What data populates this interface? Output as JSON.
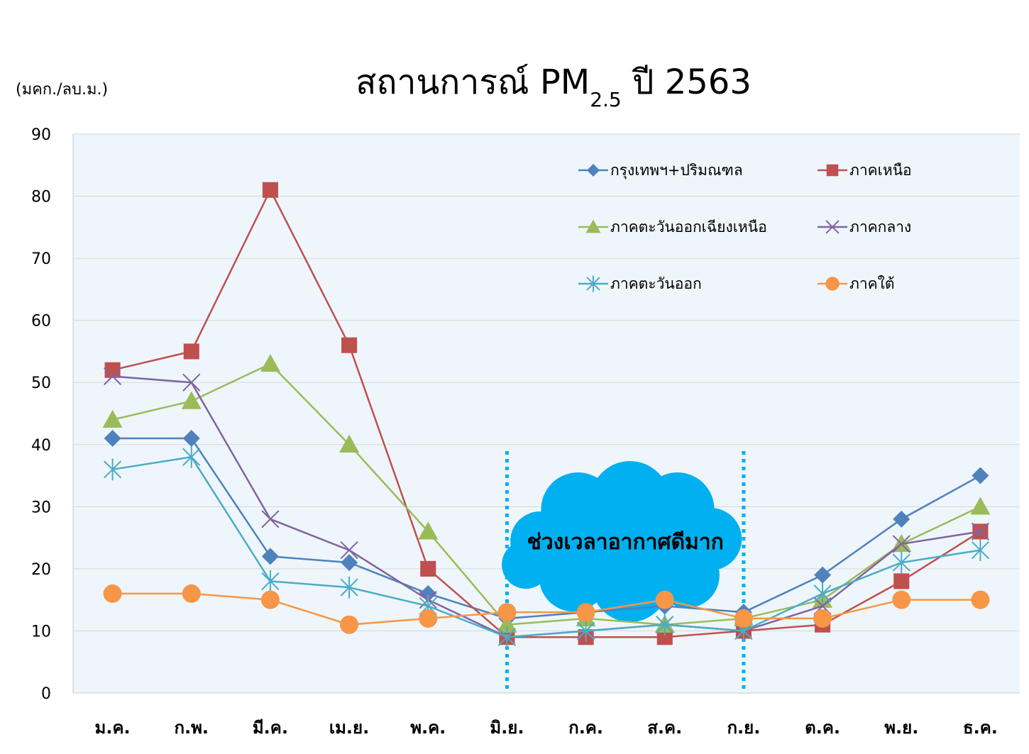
{
  "title": {
    "main": "สถานการณ์ PM",
    "subscript": "2.5",
    "suffix": " ปี 2563"
  },
  "unit_label": "(มคก./ลบ.ม.)",
  "annotation": "ช่วงเวลาอากาศดีมาก",
  "colors": {
    "plot_bg": "#eef6fc",
    "grid": "#d8d8d8",
    "cloud": "#00b0f0",
    "divider": "#00b0f0"
  },
  "chart_data": {
    "type": "line",
    "title": "สถานการณ์ PM2.5 ปี 2563",
    "ylabel": "(มคก./ลบ.ม.)",
    "ylim": [
      0,
      90
    ],
    "yticks": [
      0,
      10,
      20,
      30,
      40,
      50,
      60,
      70,
      80,
      90
    ],
    "grid": true,
    "legend_position": "top-right",
    "categories": [
      "ม.ค.",
      "ก.พ.",
      "มี.ค.",
      "เม.ย.",
      "พ.ค.",
      "มิ.ย.",
      "ก.ค.",
      "ส.ค.",
      "ก.ย.",
      "ต.ค.",
      "พ.ย.",
      "ธ.ค."
    ],
    "highlight_range": {
      "from": "มิ.ย.",
      "to": "ก.ย.",
      "label": "ช่วงเวลาอากาศดีมาก"
    },
    "series": [
      {
        "name": "กรุงเทพฯ+ปริมณฑล",
        "color": "#4f81bd",
        "marker": "diamond",
        "values": [
          41,
          41,
          22,
          21,
          16,
          12,
          13,
          14,
          13,
          19,
          28,
          35
        ]
      },
      {
        "name": "ภาคเหนือ",
        "color": "#c0504d",
        "marker": "square",
        "values": [
          52,
          55,
          81,
          56,
          20,
          9,
          9,
          9,
          10,
          11,
          18,
          26
        ]
      },
      {
        "name": "ภาคตะวันออกเฉียงเหนือ",
        "color": "#9bbb59",
        "marker": "triangle",
        "values": [
          44,
          47,
          53,
          40,
          26,
          11,
          12,
          11,
          12,
          15,
          24,
          30
        ]
      },
      {
        "name": "ภาคกลาง",
        "color": "#8064a2",
        "marker": "x",
        "values": [
          51,
          50,
          28,
          23,
          15,
          9,
          10,
          11,
          10,
          14,
          24,
          26
        ]
      },
      {
        "name": "ภาคตะวันออก",
        "color": "#4bacc6",
        "marker": "star",
        "values": [
          36,
          38,
          18,
          17,
          14,
          9,
          10,
          11,
          10,
          16,
          21,
          23
        ]
      },
      {
        "name": "ภาคใต้",
        "color": "#f79646",
        "marker": "circle",
        "values": [
          16,
          16,
          15,
          11,
          12,
          13,
          13,
          15,
          12,
          12,
          15,
          15
        ]
      }
    ]
  }
}
